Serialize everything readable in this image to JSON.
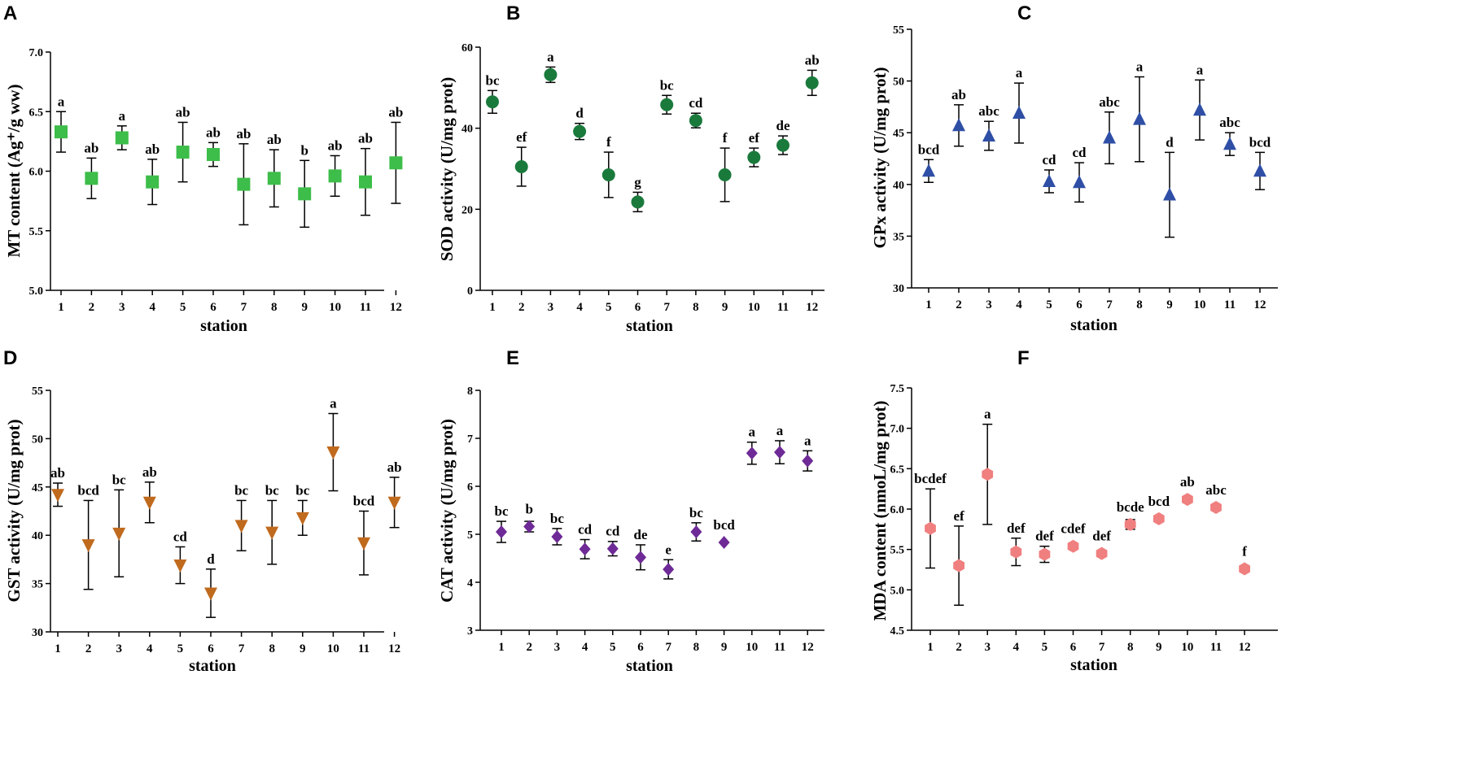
{
  "chart_data": [
    {
      "panel": "A",
      "type": "scatter",
      "ylabel": "MT content (Ag⁺/g ww)",
      "xlabel": "station",
      "ylim": [
        5.0,
        7.0
      ],
      "yticks": [
        "5.0",
        "5.5",
        "6.0",
        "6.5",
        "7.0"
      ],
      "categories": [
        "1",
        "2",
        "3",
        "4",
        "5",
        "6",
        "7",
        "8",
        "9",
        "10",
        "11",
        "12"
      ],
      "values": [
        6.33,
        5.94,
        6.28,
        5.91,
        6.16,
        6.14,
        5.89,
        5.94,
        5.81,
        5.96,
        5.91,
        6.07
      ],
      "errors": [
        0.17,
        0.17,
        0.1,
        0.19,
        0.25,
        0.1,
        0.34,
        0.24,
        0.28,
        0.17,
        0.28,
        0.34
      ],
      "letters": [
        "a",
        "ab",
        "a",
        "ab",
        "ab",
        "ab",
        "ab",
        "ab",
        "b",
        "ab",
        "ab",
        "ab"
      ],
      "marker": "square",
      "color": "#3dbd49"
    },
    {
      "panel": "B",
      "type": "scatter",
      "ylabel": "SOD activity (U/mg prot)",
      "xlabel": "station",
      "ylim": [
        0,
        60
      ],
      "yticks": [
        "0",
        "20",
        "40",
        "60"
      ],
      "categories": [
        "1",
        "2",
        "3",
        "4",
        "5",
        "6",
        "7",
        "8",
        "9",
        "10",
        "11",
        "12"
      ],
      "values": [
        46.5,
        30.5,
        53.2,
        39.2,
        28.5,
        21.8,
        45.8,
        41.9,
        28.5,
        32.8,
        35.8,
        51.2
      ],
      "errors": [
        2.8,
        4.8,
        1.9,
        2.0,
        5.6,
        2.4,
        2.3,
        1.8,
        6.6,
        2.3,
        2.3,
        3.1
      ],
      "letters": [
        "bc",
        "ef",
        "a",
        "d",
        "f",
        "g",
        "bc",
        "cd",
        "f",
        "ef",
        "de",
        "ab"
      ],
      "marker": "circle",
      "color": "#1a7a3c"
    },
    {
      "panel": "C",
      "type": "scatter",
      "ylabel": "GPx activity (U/mg prot)",
      "xlabel": "station",
      "ylim": [
        30,
        55
      ],
      "yticks": [
        "30",
        "35",
        "40",
        "45",
        "50",
        "55"
      ],
      "categories": [
        "1",
        "2",
        "3",
        "4",
        "5",
        "6",
        "7",
        "8",
        "9",
        "10",
        "11",
        "12"
      ],
      "values": [
        41.3,
        45.7,
        44.7,
        46.9,
        40.3,
        40.2,
        44.5,
        46.3,
        39.0,
        47.2,
        43.9,
        41.3
      ],
      "errors": [
        1.1,
        2.0,
        1.4,
        2.9,
        1.1,
        1.9,
        2.5,
        4.1,
        4.1,
        2.9,
        1.1,
        1.8
      ],
      "letters": [
        "bcd",
        "ab",
        "abc",
        "a",
        "cd",
        "cd",
        "abc",
        "a",
        "d",
        "a",
        "abc",
        "bcd"
      ],
      "marker": "triangle-up",
      "color": "#2f4fa6"
    },
    {
      "panel": "D",
      "type": "scatter",
      "ylabel": "GST activity (U/mg prot)",
      "xlabel": "station",
      "ylim": [
        30,
        55
      ],
      "yticks": [
        "30",
        "35",
        "40",
        "45",
        "50",
        "55"
      ],
      "categories": [
        "1",
        "2",
        "3",
        "4",
        "5",
        "6",
        "7",
        "8",
        "9",
        "10",
        "11",
        "12"
      ],
      "values": [
        44.2,
        39.0,
        40.2,
        43.4,
        36.9,
        34.0,
        41.0,
        40.3,
        41.8,
        48.6,
        39.2,
        43.4
      ],
      "errors": [
        1.2,
        4.6,
        4.5,
        2.1,
        1.9,
        2.5,
        2.6,
        3.3,
        1.8,
        4.0,
        3.3,
        2.6
      ],
      "letters": [
        "ab",
        "bcd",
        "bc",
        "ab",
        "cd",
        "d",
        "bc",
        "bc",
        "bc",
        "a",
        "bcd",
        "ab"
      ],
      "marker": "triangle-down",
      "color": "#c06a1e"
    },
    {
      "panel": "E",
      "type": "scatter",
      "ylabel": "CAT activity (U/mg prot)",
      "xlabel": "station",
      "ylim": [
        3,
        8
      ],
      "yticks": [
        "3",
        "4",
        "5",
        "6",
        "7",
        "8"
      ],
      "categories": [
        "1",
        "2",
        "3",
        "4",
        "5",
        "6",
        "7",
        "8",
        "9",
        "10",
        "11",
        "12"
      ],
      "values": [
        5.05,
        5.16,
        4.95,
        4.69,
        4.7,
        4.52,
        4.27,
        5.05,
        4.83,
        6.69,
        6.71,
        6.53
      ],
      "errors": [
        0.22,
        0.11,
        0.17,
        0.2,
        0.15,
        0.26,
        0.2,
        0.19,
        0.0,
        0.23,
        0.24,
        0.21
      ],
      "letters": [
        "bc",
        "b",
        "bc",
        "cd",
        "cd",
        "de",
        "e",
        "bc",
        "bcd",
        "a",
        "a",
        "a"
      ],
      "marker": "diamond",
      "color": "#6e2a96"
    },
    {
      "panel": "F",
      "type": "scatter",
      "ylabel": "MDA content (nmoL/mg prot)",
      "xlabel": "station",
      "ylim": [
        4.5,
        7.5
      ],
      "yticks": [
        "4.5",
        "5.0",
        "5.5",
        "6.0",
        "6.5",
        "7.0",
        "7.5"
      ],
      "categories": [
        "1",
        "2",
        "3",
        "4",
        "5",
        "6",
        "7",
        "8",
        "9",
        "10",
        "11",
        "12"
      ],
      "values": [
        5.76,
        5.3,
        6.43,
        5.47,
        5.44,
        5.54,
        5.45,
        5.81,
        5.88,
        6.12,
        6.02,
        5.26
      ],
      "errors": [
        0.49,
        0.49,
        0.62,
        0.17,
        0.1,
        0.0,
        0.0,
        0.06,
        0.0,
        0.0,
        0.0,
        0.0
      ],
      "letters": [
        "bcdef",
        "ef",
        "a",
        "def",
        "def",
        "cdef",
        "def",
        "bcde",
        "bcd",
        "ab",
        "abc",
        "f"
      ],
      "marker": "hexagon",
      "color": "#f07f7f"
    }
  ]
}
